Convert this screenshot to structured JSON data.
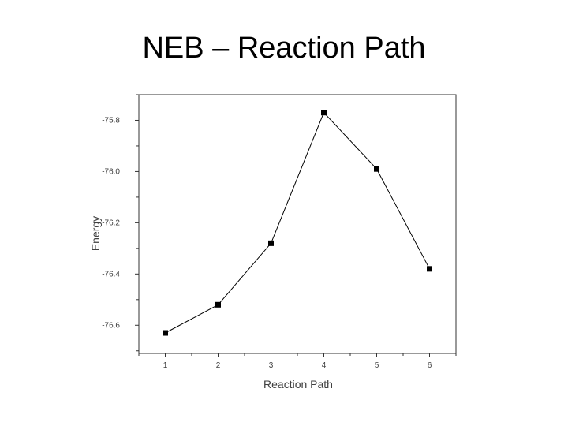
{
  "slide": {
    "title": "NEB – Reaction Path"
  },
  "chart_data": {
    "type": "line",
    "title": "",
    "xlabel": "Reaction Path",
    "ylabel": "Energy",
    "x": [
      1,
      2,
      3,
      4,
      5,
      6
    ],
    "series": [
      {
        "values": [
          -76.63,
          -76.52,
          -76.28,
          -75.77,
          -75.99,
          -76.38
        ]
      }
    ],
    "xlim": [
      0.5,
      6.5
    ],
    "ylim": [
      -76.71,
      -75.7
    ],
    "xticks": [
      "1",
      "2",
      "3",
      "4",
      "5",
      "6"
    ],
    "yticks": [
      "-75.8",
      "-76.0",
      "-76.2",
      "-76.4",
      "-76.6"
    ],
    "grid": false,
    "marker": "square",
    "line_color": "#000000"
  }
}
